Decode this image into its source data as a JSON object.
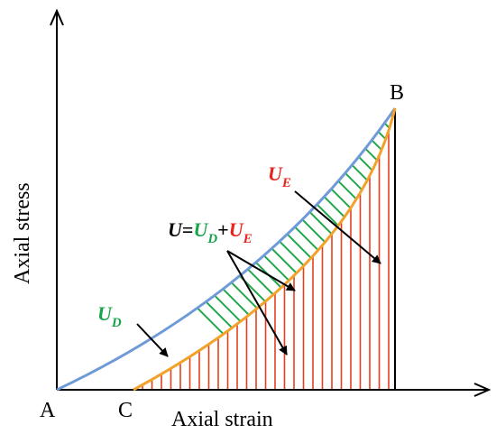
{
  "axes": {
    "x_label": "Axial strain",
    "y_label": "Axial stress"
  },
  "points": {
    "A": "A",
    "B": "B",
    "C": "C"
  },
  "labels": {
    "ud_main": "U",
    "ud_sub": "D",
    "ue_main": "U",
    "ue_sub": "E",
    "eq_u": "U",
    "eq_eq": "=",
    "eq_ud_main": "U",
    "eq_ud_sub": "D",
    "eq_plus": "+",
    "eq_ue_main": "U",
    "eq_ue_sub": "E"
  },
  "colors": {
    "loading_curve": "#6f9ad8",
    "unloading_curve": "#f2a22a",
    "ud_hatch": "#1fa84a",
    "ue_hatch": "#e2401f",
    "ud_text": "#19a34a",
    "ue_text": "#e8221c",
    "axis": "#000000"
  }
}
